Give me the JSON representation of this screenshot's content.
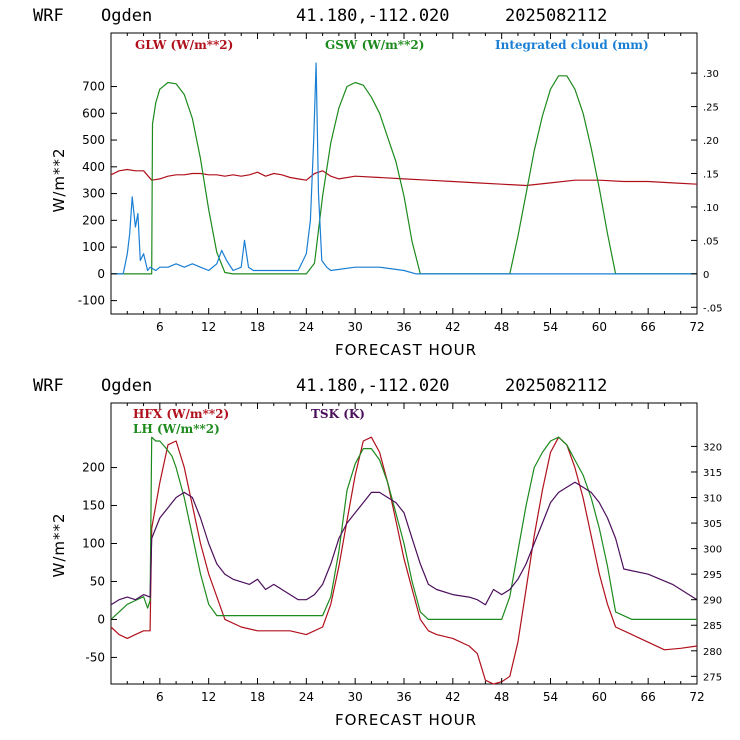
{
  "chart_data": [
    {
      "type": "line",
      "header": {
        "model": "WRF",
        "site": "Ogden",
        "coords": "41.180,-112.020",
        "run": "2025082112"
      },
      "xlabel": "FORECAST HOUR",
      "ylabel": "W/m**2",
      "xlim": [
        0,
        72
      ],
      "ylim": [
        -150,
        900
      ],
      "y2lim": [
        -0.06,
        0.36
      ],
      "xticks": [
        6,
        12,
        18,
        24,
        30,
        36,
        42,
        48,
        54,
        60,
        66,
        72
      ],
      "yticks": [
        -100,
        0,
        100,
        200,
        300,
        400,
        500,
        600,
        700
      ],
      "y2ticks": [
        {
          "v": -0.05,
          "label": "-.05"
        },
        {
          "v": 0,
          "label": "0"
        },
        {
          "v": 0.05,
          "label": ".05"
        },
        {
          "v": 0.1,
          "label": ".10"
        },
        {
          "v": 0.15,
          "label": ".15"
        },
        {
          "v": 0.2,
          "label": ".20"
        },
        {
          "v": 0.25,
          "label": ".25"
        },
        {
          "v": 0.3,
          "label": ".30"
        }
      ],
      "grid": false,
      "legend_position": "top",
      "series": [
        {
          "name": "GLW (W/m**2)",
          "color": "#b0101c",
          "axis": "left",
          "x": [
            0,
            1,
            2,
            3,
            4,
            5,
            6,
            7,
            8,
            9,
            10,
            11,
            12,
            13,
            14,
            15,
            16,
            17,
            18,
            19,
            20,
            21,
            22,
            23,
            24,
            25,
            26,
            27,
            28,
            30,
            33,
            36,
            39,
            42,
            45,
            48,
            51,
            54,
            57,
            60,
            63,
            66,
            69,
            72
          ],
          "y": [
            370,
            385,
            390,
            385,
            385,
            350,
            355,
            365,
            370,
            370,
            375,
            375,
            370,
            370,
            365,
            370,
            365,
            370,
            380,
            365,
            375,
            370,
            360,
            355,
            350,
            375,
            385,
            365,
            355,
            365,
            360,
            355,
            350,
            345,
            340,
            335,
            330,
            340,
            350,
            350,
            345,
            345,
            340,
            335
          ]
        },
        {
          "name": "GSW (W/m**2)",
          "color": "#1d8a1d",
          "axis": "left",
          "x": [
            0,
            5,
            5.1,
            5.5,
            6,
            7,
            8,
            9,
            10,
            11,
            12,
            13,
            14,
            15,
            24,
            25,
            26,
            27,
            28,
            29,
            30,
            31,
            32,
            33,
            34,
            35,
            36,
            37,
            38,
            49,
            50,
            51,
            52,
            53,
            54,
            55,
            56,
            57,
            58,
            59,
            60,
            61,
            62,
            72
          ],
          "y": [
            0,
            0,
            560,
            640,
            690,
            715,
            710,
            670,
            580,
            430,
            240,
            80,
            5,
            0,
            0,
            40,
            290,
            490,
            620,
            700,
            715,
            705,
            660,
            600,
            510,
            420,
            290,
            120,
            0,
            0,
            140,
            300,
            460,
            590,
            690,
            740,
            740,
            690,
            600,
            470,
            320,
            150,
            0,
            0
          ]
        },
        {
          "name": "Integrated cloud (mm)",
          "color": "#1a7fd4",
          "axis": "right",
          "x": [
            0,
            1.5,
            2,
            2.3,
            2.6,
            3,
            3.3,
            3.6,
            4,
            4.5,
            4.8,
            5.5,
            6,
            7,
            8,
            9,
            10,
            11,
            12,
            13,
            13.6,
            14.2,
            15,
            16,
            16.4,
            16.9,
            17.5,
            19,
            21,
            23,
            24,
            24.5,
            24.9,
            25.2,
            25.5,
            25.9,
            26.5,
            27,
            30,
            33,
            36,
            37.5,
            72
          ],
          "y": [
            0,
            0,
            0.03,
            0.06,
            0.115,
            0.07,
            0.09,
            0.02,
            0.03,
            0.005,
            0.01,
            0.005,
            0.01,
            0.01,
            0.015,
            0.01,
            0.015,
            0.01,
            0.005,
            0.015,
            0.035,
            0.02,
            0.005,
            0.01,
            0.05,
            0.01,
            0.005,
            0.005,
            0.005,
            0.005,
            0.03,
            0.08,
            0.2,
            0.315,
            0.12,
            0.02,
            0.01,
            0.005,
            0.01,
            0.01,
            0.005,
            0,
            0
          ]
        }
      ]
    },
    {
      "type": "line",
      "header": {
        "model": "WRF",
        "site": "Ogden",
        "coords": "41.180,-112.020",
        "run": "2025082112"
      },
      "xlabel": "FORECAST HOUR",
      "ylabel": "W/m**2",
      "xlim": [
        0,
        72
      ],
      "ylim": [
        -85,
        285
      ],
      "y2lim": [
        273.5,
        328.5
      ],
      "xticks": [
        6,
        12,
        18,
        24,
        30,
        36,
        42,
        48,
        54,
        60,
        66,
        72
      ],
      "yticks": [
        -50,
        0,
        50,
        100,
        150,
        200
      ],
      "y2ticks": [
        {
          "v": 275,
          "label": "275"
        },
        {
          "v": 280,
          "label": "280"
        },
        {
          "v": 285,
          "label": "285"
        },
        {
          "v": 290,
          "label": "290"
        },
        {
          "v": 295,
          "label": "295"
        },
        {
          "v": 300,
          "label": "300"
        },
        {
          "v": 305,
          "label": "305"
        },
        {
          "v": 310,
          "label": "310"
        },
        {
          "v": 315,
          "label": "315"
        },
        {
          "v": 320,
          "label": "320"
        }
      ],
      "grid": false,
      "legend_position": "top-left",
      "series": [
        {
          "name": "HFX (W/m**2)",
          "color": "#b0101c",
          "axis": "left",
          "x": [
            0,
            1,
            2,
            3,
            4,
            4.8,
            5,
            6,
            7,
            8,
            9,
            10,
            11,
            12,
            13,
            14,
            16,
            18,
            20,
            22,
            24,
            26,
            27,
            28,
            29,
            30,
            31,
            32,
            33,
            34,
            35,
            36,
            37,
            38,
            39,
            40,
            42,
            44,
            45,
            46,
            47,
            48,
            49,
            50,
            51,
            52,
            53,
            54,
            55,
            56,
            57,
            58,
            59,
            60,
            61,
            62,
            64,
            66,
            68,
            70,
            72
          ],
          "y": [
            -10,
            -20,
            -25,
            -20,
            -15,
            -15,
            120,
            180,
            230,
            235,
            200,
            150,
            100,
            60,
            30,
            0,
            -10,
            -15,
            -15,
            -15,
            -20,
            -10,
            20,
            70,
            130,
            190,
            235,
            240,
            220,
            180,
            130,
            80,
            40,
            0,
            -15,
            -20,
            -25,
            -35,
            -45,
            -80,
            -85,
            -82,
            -75,
            -30,
            40,
            110,
            170,
            220,
            240,
            230,
            200,
            160,
            110,
            60,
            20,
            -10,
            -20,
            -30,
            -40,
            -38,
            -35
          ]
        },
        {
          "name": "LH  (W/m**2)",
          "color": "#1d8a1d",
          "axis": "left",
          "x": [
            0,
            1,
            2,
            3,
            4,
            4.5,
            4.8,
            5,
            5.5,
            6,
            6.8,
            7.5,
            8,
            9,
            10,
            11,
            12,
            13,
            14,
            15,
            18,
            21,
            24,
            26,
            27,
            28,
            29,
            30,
            31,
            32,
            33,
            34,
            35,
            36,
            37,
            38,
            39,
            42,
            48,
            49,
            50,
            51,
            52,
            53,
            54,
            55,
            56,
            57,
            58,
            59,
            60,
            61,
            62,
            64,
            66,
            69,
            72
          ],
          "y": [
            0,
            10,
            20,
            25,
            30,
            15,
            25,
            240,
            235,
            235,
            225,
            215,
            200,
            160,
            110,
            60,
            20,
            5,
            5,
            5,
            5,
            5,
            5,
            5,
            30,
            90,
            170,
            205,
            225,
            225,
            210,
            180,
            140,
            100,
            50,
            10,
            0,
            0,
            0,
            30,
            90,
            150,
            200,
            220,
            235,
            240,
            230,
            210,
            190,
            160,
            120,
            70,
            10,
            0,
            0,
            0,
            0
          ]
        },
        {
          "name": "TSK (K)",
          "color": "#4c0f5c",
          "axis": "right",
          "x": [
            0,
            1,
            2,
            3,
            4,
            4.8,
            5,
            6,
            7,
            8,
            9,
            10,
            11,
            12,
            13,
            14,
            15,
            16,
            17,
            18,
            19,
            20,
            21,
            22,
            23,
            24,
            25,
            26,
            27,
            28,
            29,
            30,
            31,
            32,
            33,
            34,
            35,
            36,
            37,
            38,
            39,
            40,
            42,
            44,
            45,
            46,
            47,
            48,
            49,
            50,
            51,
            52,
            53,
            54,
            55,
            56,
            57,
            58,
            59,
            60,
            61,
            62,
            63,
            66,
            69,
            72
          ],
          "y": [
            289,
            290,
            290.5,
            290,
            291,
            290.5,
            302,
            306,
            308,
            310,
            311,
            310,
            306,
            301,
            297,
            295,
            294,
            293.5,
            293,
            294,
            292,
            293,
            292,
            291,
            290,
            290,
            291,
            293,
            297,
            302,
            305,
            307,
            309,
            311,
            311,
            310,
            309,
            307,
            302,
            297,
            293,
            292,
            291,
            290.5,
            290,
            289,
            292,
            291,
            292,
            294,
            297,
            301,
            305,
            309,
            311,
            312,
            313,
            312,
            311,
            309,
            306,
            302,
            296,
            295,
            293,
            290
          ]
        }
      ]
    }
  ]
}
